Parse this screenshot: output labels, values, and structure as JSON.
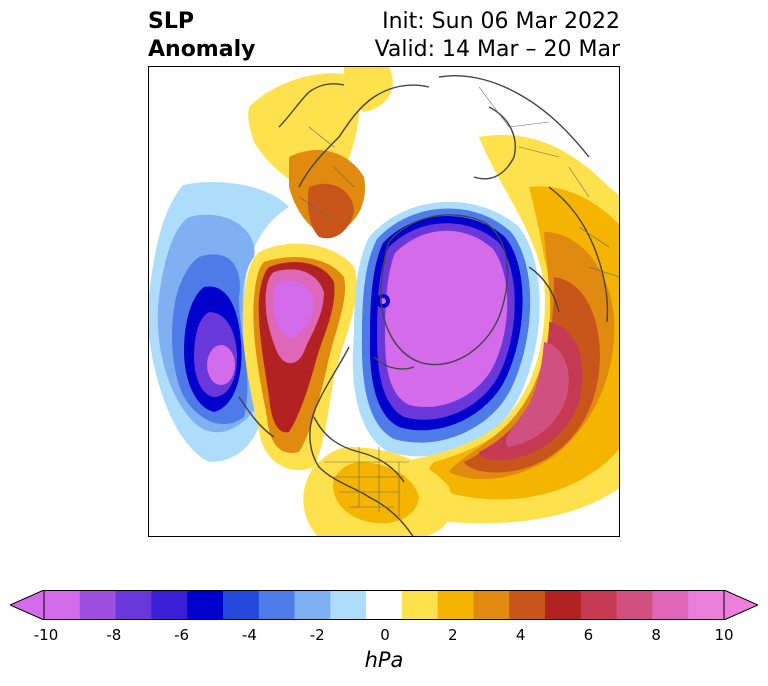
{
  "title": {
    "line1_left": "SLP",
    "line2_left": "Anomaly",
    "line1_right": "Init: Sun 06 Mar 2022",
    "line2_right": "Valid: 14 Mar – 20 Mar"
  },
  "colorbar": {
    "units": "hPa",
    "tick_labels": [
      "-10",
      "-8",
      "-6",
      "-4",
      "-2",
      "0",
      "2",
      "4",
      "6",
      "8",
      "10"
    ],
    "colors": [
      "#d36bea",
      "#9e4fe0",
      "#6a37db",
      "#3b1fd6",
      "#0000cc",
      "#2548dc",
      "#4f7be9",
      "#7fb0f1",
      "#aedcfb",
      "#ffffff",
      "#ffe14d",
      "#f4b400",
      "#e08a10",
      "#c8561a",
      "#b22222",
      "#c53a52",
      "#d05080",
      "#df67b7",
      "#ec7fdb"
    ],
    "extend_min_color": "#d36bea",
    "extend_max_color": "#ec7fdb"
  }
}
